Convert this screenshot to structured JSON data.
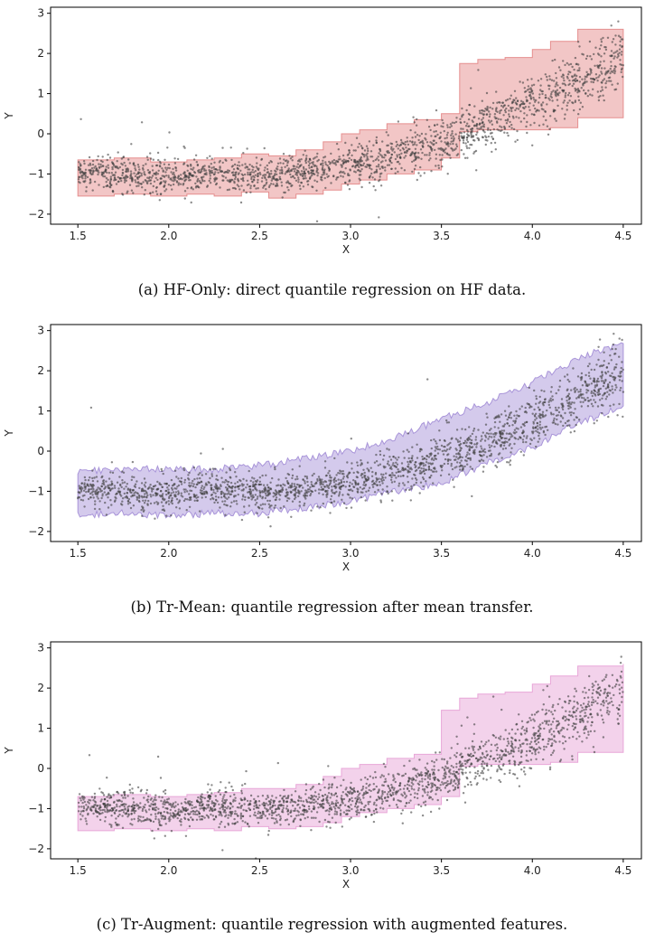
{
  "chart_data": [
    {
      "type": "scatter",
      "title": "",
      "caption": "(a) HF-Only: direct quantile regression on HF data.",
      "xlabel": "X",
      "ylabel": "Y",
      "xlim": [
        1.35,
        4.6
      ],
      "ylim": [
        -2.25,
        3.15
      ],
      "xticks": [
        1.5,
        2.0,
        2.5,
        3.0,
        3.5,
        4.0,
        4.5
      ],
      "xtick_labels": [
        "1.5",
        "2.0",
        "2.5",
        "3.0",
        "3.5",
        "4.0",
        "4.5"
      ],
      "yticks": [
        -2,
        -1,
        0,
        1,
        2,
        3
      ],
      "ytick_labels": [
        "−2",
        "−1",
        "0",
        "1",
        "2",
        "3"
      ],
      "grid": false,
      "band_color": "#e58e8e",
      "band_style": "step",
      "band": {
        "x": [
          1.5,
          1.7,
          1.9,
          2.1,
          2.25,
          2.4,
          2.55,
          2.7,
          2.85,
          2.95,
          3.05,
          3.2,
          3.35,
          3.5,
          3.6,
          3.7,
          3.85,
          4.0,
          4.1,
          4.25,
          4.5
        ],
        "lower": [
          -1.55,
          -1.5,
          -1.55,
          -1.5,
          -1.55,
          -1.45,
          -1.6,
          -1.5,
          -1.4,
          -1.25,
          -1.15,
          -1.0,
          -0.9,
          -0.6,
          0.05,
          0.1,
          0.1,
          0.1,
          0.15,
          0.4,
          0.4
        ],
        "upper": [
          -0.65,
          -0.6,
          -0.7,
          -0.65,
          -0.6,
          -0.5,
          -0.55,
          -0.4,
          -0.2,
          0.0,
          0.1,
          0.25,
          0.35,
          0.5,
          1.75,
          1.85,
          1.9,
          2.1,
          2.3,
          2.6,
          2.6
        ]
      },
      "scatter_color": "#404040",
      "scatter_n": 2000,
      "scatter_trend_note": "y ≈ -1 for x < 2.6, then rising to ≈ 2 at x = 4.5"
    },
    {
      "type": "scatter",
      "title": "",
      "caption": "(b) Tr-Mean: quantile regression after mean transfer.",
      "xlabel": "X",
      "ylabel": "Y",
      "xlim": [
        1.35,
        4.6
      ],
      "ylim": [
        -2.25,
        3.15
      ],
      "xticks": [
        1.5,
        2.0,
        2.5,
        3.0,
        3.5,
        4.0,
        4.5
      ],
      "xtick_labels": [
        "1.5",
        "2.0",
        "2.5",
        "3.0",
        "3.5",
        "4.0",
        "4.5"
      ],
      "yticks": [
        -2,
        -1,
        0,
        1,
        2,
        3
      ],
      "ytick_labels": [
        "−2",
        "−1",
        "0",
        "1",
        "2",
        "3"
      ],
      "grid": false,
      "band_color": "#a995d9",
      "band_style": "jagged",
      "band": {
        "x": [
          1.5,
          1.75,
          2.0,
          2.25,
          2.5,
          2.75,
          3.0,
          3.25,
          3.5,
          3.75,
          4.0,
          4.25,
          4.5
        ],
        "lower": [
          -1.6,
          -1.55,
          -1.6,
          -1.55,
          -1.55,
          -1.4,
          -1.25,
          -1.0,
          -0.8,
          -0.3,
          0.1,
          0.7,
          1.1
        ],
        "upper": [
          -0.5,
          -0.45,
          -0.45,
          -0.45,
          -0.35,
          -0.2,
          0.0,
          0.35,
          0.8,
          1.2,
          1.7,
          2.3,
          2.7
        ]
      },
      "scatter_color": "#404040",
      "scatter_n": 2000
    },
    {
      "type": "scatter",
      "title": "",
      "caption": "(c) Tr-Augment: quantile regression with augmented features.",
      "xlabel": "X",
      "ylabel": "Y",
      "xlim": [
        1.35,
        4.6
      ],
      "ylim": [
        -2.25,
        3.15
      ],
      "xticks": [
        1.5,
        2.0,
        2.5,
        3.0,
        3.5,
        4.0,
        4.5
      ],
      "xtick_labels": [
        "1.5",
        "2.0",
        "2.5",
        "3.0",
        "3.5",
        "4.0",
        "4.5"
      ],
      "yticks": [
        -2,
        -1,
        0,
        1,
        2,
        3
      ],
      "ytick_labels": [
        "−2",
        "−1",
        "0",
        "1",
        "2",
        "3"
      ],
      "grid": false,
      "band_color": "#e8a6d8",
      "band_style": "step",
      "band": {
        "x": [
          1.5,
          1.7,
          1.9,
          2.1,
          2.25,
          2.4,
          2.55,
          2.7,
          2.85,
          2.95,
          3.05,
          3.2,
          3.35,
          3.5,
          3.6,
          3.7,
          3.85,
          4.0,
          4.1,
          4.25,
          4.5
        ],
        "lower": [
          -1.55,
          -1.5,
          -1.55,
          -1.5,
          -1.55,
          -1.45,
          -1.5,
          -1.45,
          -1.35,
          -1.2,
          -1.1,
          -1.0,
          -0.9,
          -0.7,
          0.05,
          0.1,
          0.1,
          0.1,
          0.15,
          0.4,
          0.4
        ],
        "upper": [
          -0.7,
          -0.65,
          -0.7,
          -0.65,
          -0.6,
          -0.5,
          -0.5,
          -0.4,
          -0.2,
          0.0,
          0.1,
          0.25,
          0.35,
          1.45,
          1.75,
          1.85,
          1.9,
          2.1,
          2.3,
          2.55,
          2.6
        ]
      },
      "scatter_color": "#404040",
      "scatter_n": 2000
    }
  ]
}
